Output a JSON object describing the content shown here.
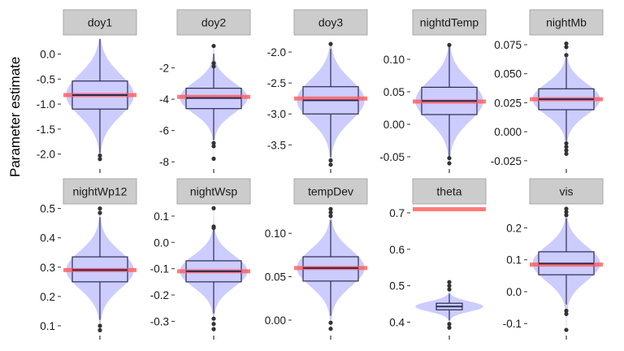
{
  "chart_data": {
    "type": "violin-boxplot-facets",
    "ylabel": "Parameter estimate",
    "facets": [
      {
        "name": "doy1",
        "ylim": [
          -2.25,
          0.35
        ],
        "ticks": [
          0.0,
          -0.5,
          -1.0,
          -1.5,
          -2.0
        ],
        "tick_labels": [
          "0.0",
          "-0.5",
          "-1.0",
          "-1.5",
          "-2.0"
        ],
        "true_value": -0.82,
        "box": {
          "min": -1.98,
          "q1": -1.1,
          "median": -0.82,
          "q3": -0.54,
          "max": 0.3
        },
        "outliers": [
          -2.03,
          -2.1
        ],
        "violin_width": 0.9
      },
      {
        "name": "doy2",
        "ylim": [
          -8.3,
          0.0
        ],
        "ticks": [
          -2,
          -4,
          -6,
          -8
        ],
        "tick_labels": [
          "-2",
          "-4",
          "-6",
          "-8"
        ],
        "true_value": -3.85,
        "box": {
          "min": -6.6,
          "q1": -4.6,
          "median": -3.92,
          "q3": -3.3,
          "max": -1.1
        },
        "outliers": [
          -0.6,
          -1.7,
          -1.9,
          -6.8,
          -7.0,
          -7.8
        ],
        "violin_width": 0.9
      },
      {
        "name": "doy3",
        "ylim": [
          -3.85,
          -1.75
        ],
        "ticks": [
          -2.0,
          -2.5,
          -3.0,
          -3.5
        ],
        "tick_labels": [
          "-2.0",
          "-2.5",
          "-3.0",
          "-3.5"
        ],
        "true_value": -2.75,
        "box": {
          "min": -3.7,
          "q1": -3.0,
          "median": -2.78,
          "q3": -2.56,
          "max": -1.95
        },
        "outliers": [
          -1.87,
          -3.75,
          -3.82
        ],
        "violin_width": 0.9
      },
      {
        "name": "nightdTemp",
        "ylim": [
          -0.065,
          0.135
        ],
        "ticks": [
          0.1,
          0.05,
          0.0,
          -0.05
        ],
        "tick_labels": [
          "0.10",
          "0.05",
          "0.00",
          "-0.05"
        ],
        "true_value": 0.035,
        "box": {
          "min": -0.05,
          "q1": 0.015,
          "median": 0.036,
          "q3": 0.057,
          "max": 0.12
        },
        "outliers": [
          0.122,
          -0.052,
          -0.06
        ],
        "violin_width": 0.9
      },
      {
        "name": "nightMb",
        "ylim": [
          -0.03,
          0.082
        ],
        "ticks": [
          0.075,
          0.05,
          0.025,
          0.0,
          -0.025
        ],
        "tick_labels": [
          "0.075",
          "0.050",
          "0.025",
          "0.000",
          "-0.025"
        ],
        "true_value": 0.028,
        "box": {
          "min": -0.008,
          "q1": 0.019,
          "median": 0.028,
          "q3": 0.037,
          "max": 0.064
        },
        "outliers": [
          0.073,
          0.076,
          0.066,
          -0.01,
          -0.013,
          -0.016,
          -0.019
        ],
        "violin_width": 0.9
      },
      {
        "name": "nightWp12",
        "ylim": [
          0.075,
          0.51
        ],
        "ticks": [
          0.5,
          0.4,
          0.3,
          0.2,
          0.1
        ],
        "tick_labels": [
          "0.5",
          "0.4",
          "0.3",
          "0.2",
          "0.1"
        ],
        "true_value": 0.29,
        "box": {
          "min": 0.12,
          "q1": 0.25,
          "median": 0.29,
          "q3": 0.335,
          "max": 0.47
        },
        "outliers": [
          0.5,
          0.485,
          0.1,
          0.085
        ],
        "violin_width": 0.9
      },
      {
        "name": "nightWsp",
        "ylim": [
          -0.345,
          0.14
        ],
        "ticks": [
          0.1,
          0.0,
          -0.1,
          -0.2,
          -0.3
        ],
        "tick_labels": [
          "0.1",
          "0.0",
          "-0.1",
          "-0.2",
          "-0.3"
        ],
        "true_value": -0.11,
        "box": {
          "min": -0.27,
          "q1": -0.15,
          "median": -0.11,
          "q3": -0.07,
          "max": 0.05
        },
        "outliers": [
          0.13,
          0.06,
          0.055,
          -0.29,
          -0.31,
          -0.33
        ],
        "violin_width": 0.9
      },
      {
        "name": "tempDev",
        "ylim": [
          -0.015,
          0.132
        ],
        "ticks": [
          0.1,
          0.05,
          0.0
        ],
        "tick_labels": [
          "0.10",
          "0.05",
          "0.00"
        ],
        "true_value": 0.06,
        "box": {
          "min": 0.005,
          "q1": 0.045,
          "median": 0.06,
          "q3": 0.073,
          "max": 0.115
        },
        "outliers": [
          0.128,
          0.124,
          0.12,
          -0.003,
          -0.01
        ],
        "violin_width": 0.9
      },
      {
        "name": "theta",
        "ylim": [
          0.37,
          0.72
        ],
        "ticks": [
          0.7,
          0.6,
          0.5,
          0.4
        ],
        "tick_labels": [
          "0.7",
          "0.6",
          "0.5",
          "0.4"
        ],
        "true_value": 0.71,
        "box": {
          "min": 0.405,
          "q1": 0.434,
          "median": 0.443,
          "q3": 0.452,
          "max": 0.478
        },
        "outliers": [
          0.51,
          0.5,
          0.49,
          0.395,
          0.385
        ],
        "violin_width": 0.9
      },
      {
        "name": "vis",
        "ylim": [
          -0.13,
          0.27
        ],
        "ticks": [
          0.2,
          0.1,
          0.0,
          -0.1
        ],
        "tick_labels": [
          "0.2",
          "0.1",
          "0.0",
          "-0.1"
        ],
        "true_value": 0.085,
        "box": {
          "min": -0.04,
          "q1": 0.053,
          "median": 0.088,
          "q3": 0.125,
          "max": 0.23
        },
        "outliers": [
          0.26,
          0.25,
          0.24,
          -0.06,
          -0.07,
          -0.12
        ],
        "violin_width": 0.9
      }
    ]
  }
}
